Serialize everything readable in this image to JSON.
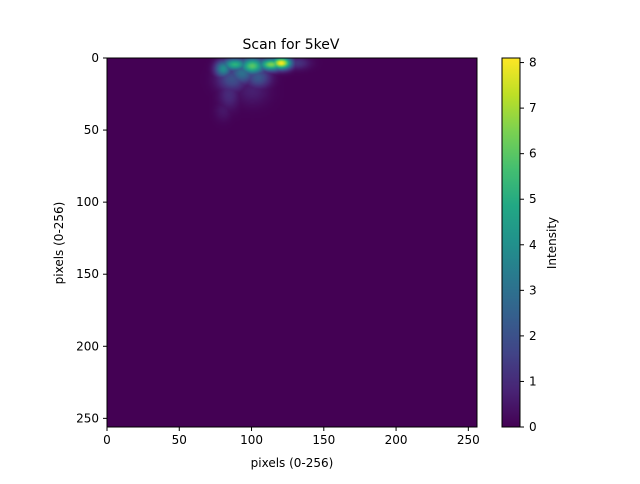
{
  "chart_data": {
    "type": "heatmap",
    "title": "Scan for 5keV",
    "xlabel": "pixels (0-256)",
    "ylabel": "pixels (0-256)",
    "xlim": [
      0,
      256
    ],
    "ylim": [
      256,
      0
    ],
    "x_ticks": [
      0,
      50,
      100,
      150,
      200,
      250
    ],
    "y_ticks": [
      0,
      50,
      100,
      150,
      200,
      250
    ],
    "colormap": "viridis",
    "colorbar": {
      "label": "Intensity",
      "min": 0,
      "max": 8.1,
      "ticks": [
        0,
        1,
        2,
        3,
        4,
        5,
        6,
        7,
        8
      ]
    },
    "background_value": 0,
    "hotspots": [
      {
        "x": 120,
        "y": 3,
        "value": 8.1,
        "sx": 5,
        "sy": 3
      },
      {
        "x": 113,
        "y": 4,
        "value": 6.5,
        "sx": 6,
        "sy": 3
      },
      {
        "x": 100,
        "y": 5,
        "value": 6.0,
        "sx": 6,
        "sy": 4
      },
      {
        "x": 88,
        "y": 4,
        "value": 5.2,
        "sx": 6,
        "sy": 3
      },
      {
        "x": 80,
        "y": 7,
        "value": 4.0,
        "sx": 4,
        "sy": 4
      },
      {
        "x": 93,
        "y": 10,
        "value": 3.0,
        "sx": 6,
        "sy": 5
      },
      {
        "x": 104,
        "y": 13,
        "value": 2.2,
        "sx": 6,
        "sy": 5
      },
      {
        "x": 86,
        "y": 14,
        "value": 2.0,
        "sx": 7,
        "sy": 6
      },
      {
        "x": 131,
        "y": 3,
        "value": 1.2,
        "sx": 6,
        "sy": 3
      },
      {
        "x": 84,
        "y": 25,
        "value": 1.0,
        "sx": 5,
        "sy": 7
      },
      {
        "x": 100,
        "y": 22,
        "value": 0.7,
        "sx": 8,
        "sy": 7
      },
      {
        "x": 80,
        "y": 36,
        "value": 0.5,
        "sx": 4,
        "sy": 5
      }
    ]
  }
}
